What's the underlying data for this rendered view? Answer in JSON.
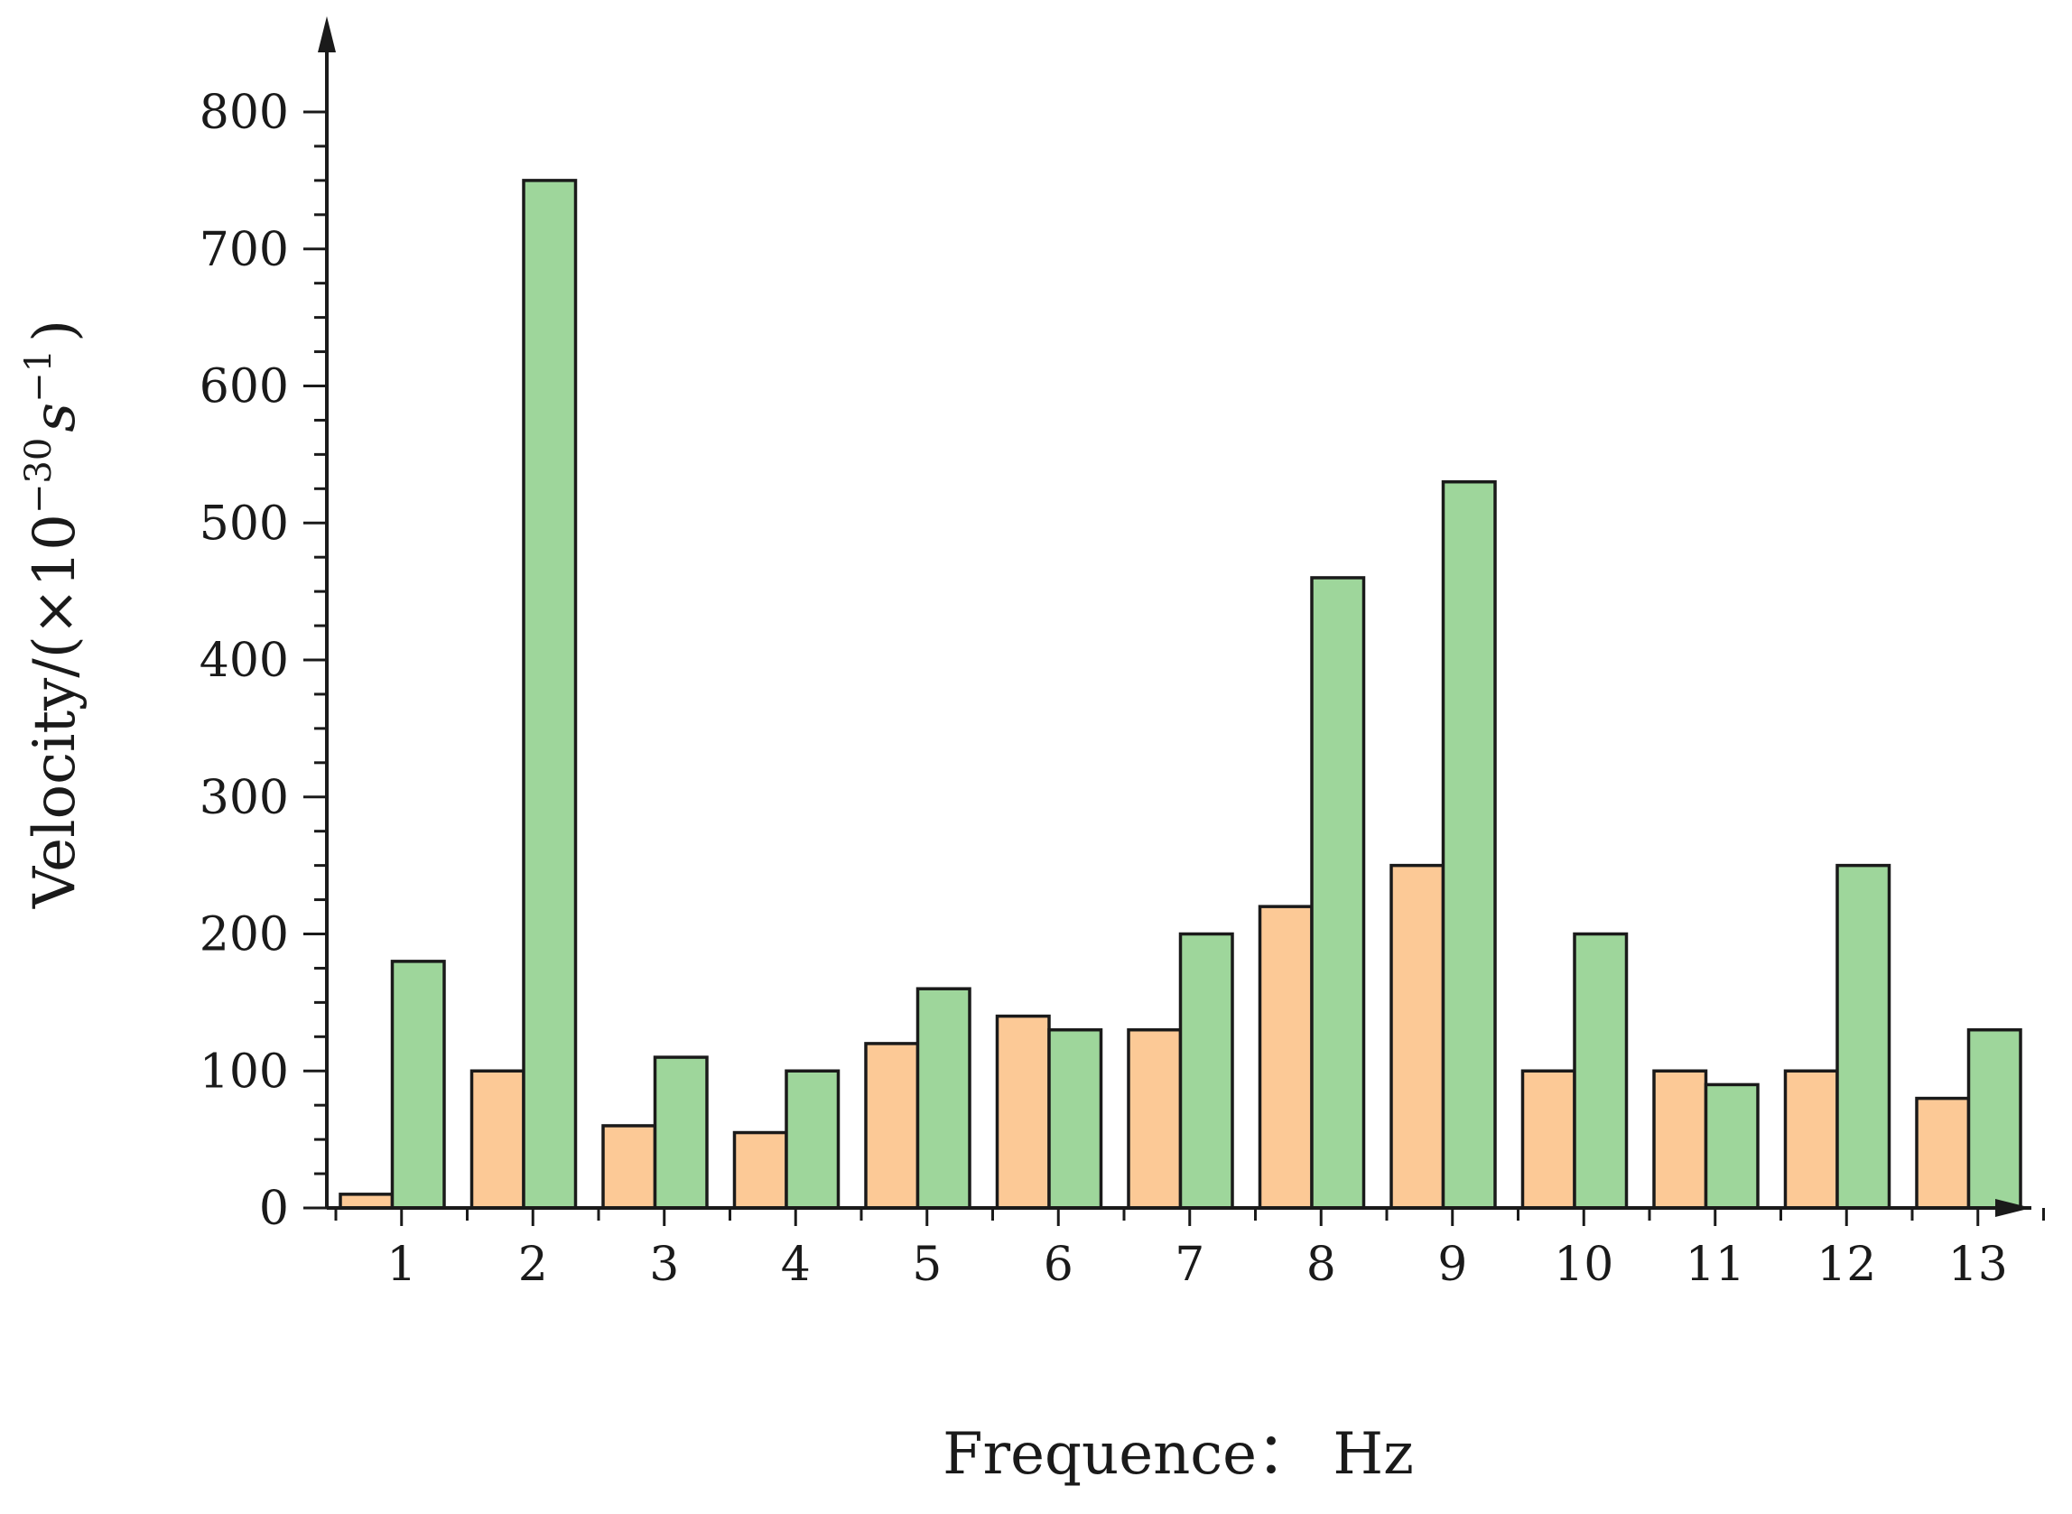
{
  "chart_data": {
    "type": "bar",
    "categories": [
      "1",
      "2",
      "3",
      "4",
      "5",
      "6",
      "7",
      "8",
      "9",
      "10",
      "11",
      "12",
      "13"
    ],
    "series": [
      {
        "color": "#fcc996",
        "values": [
          10,
          100,
          60,
          55,
          120,
          140,
          130,
          220,
          250,
          100,
          100,
          100,
          80
        ]
      },
      {
        "color": "#9ed69b",
        "values": [
          180,
          750,
          110,
          100,
          160,
          130,
          200,
          460,
          530,
          200,
          90,
          250,
          130
        ]
      }
    ],
    "title": "",
    "xlabel": "Frequence： Hz",
    "ylabel": {
      "prefix": "Velocity/(×10",
      "exp1": "−30",
      "mid": "s",
      "exp2": "−1",
      "suffix": ")"
    },
    "ylim": [
      0,
      800
    ],
    "yticks": [
      0,
      100,
      200,
      300,
      400,
      500,
      600,
      700,
      800
    ],
    "grid": false,
    "legend": "none"
  }
}
